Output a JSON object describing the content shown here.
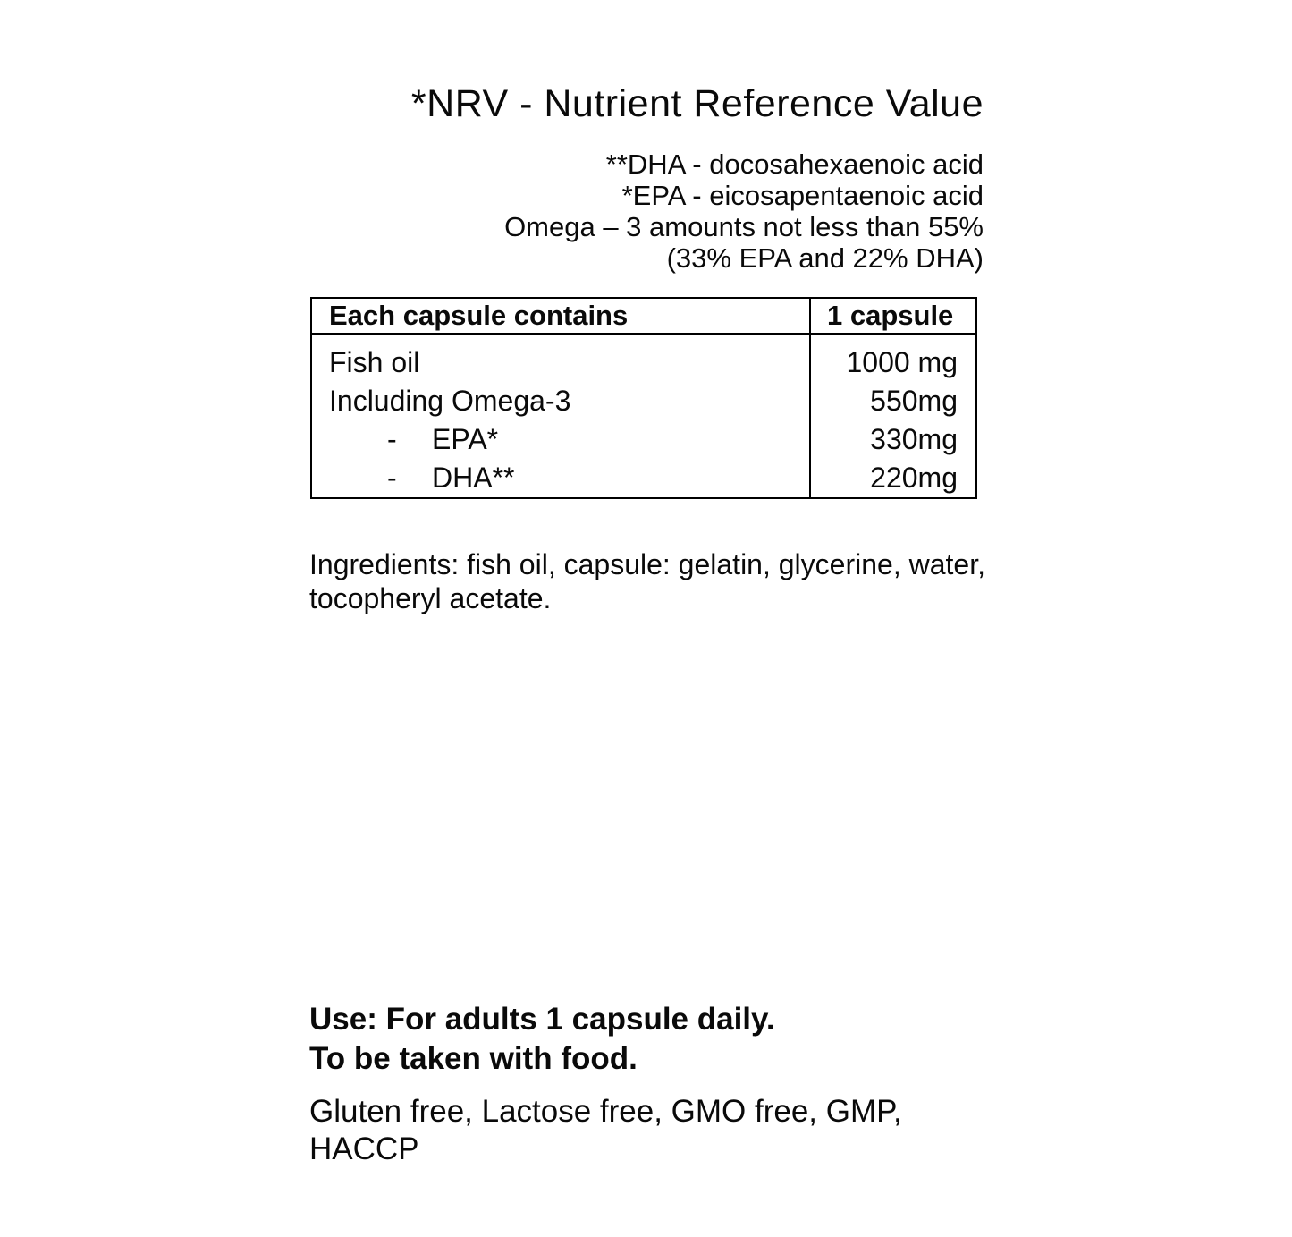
{
  "page": {
    "background": "#ffffff",
    "text_color": "#0a0a0a"
  },
  "header": {
    "nrv_note": "*NRV - Nutrient Reference Value",
    "footnotes": [
      "**DHA - docosahexaenoic acid",
      "*EPA - eicosapentaenoic acid",
      "Omega – 3 amounts not less than 55%",
      "(33% EPA and 22% DHA)"
    ]
  },
  "table": {
    "columns": [
      "Each capsule contains",
      "1 capsule"
    ],
    "indent_marker": "-",
    "rows": [
      {
        "label": "Fish oil",
        "value": "1000 mg",
        "indented": false
      },
      {
        "label": "Including Omega-3",
        "value": "550mg",
        "indented": false
      },
      {
        "label": "EPA*",
        "value": "330mg",
        "indented": true
      },
      {
        "label": "DHA**",
        "value": "220mg",
        "indented": true
      }
    ]
  },
  "ingredients": {
    "text": "Ingredients: fish oil, capsule: gelatin, glycerine, water, tocopheryl acetate."
  },
  "usage": {
    "lines": [
      "Use: For adults 1 capsule daily.",
      "To be taken with food."
    ]
  },
  "certifications": {
    "text": "Gluten free, Lactose free, GMO free, GMP, HACCP"
  }
}
